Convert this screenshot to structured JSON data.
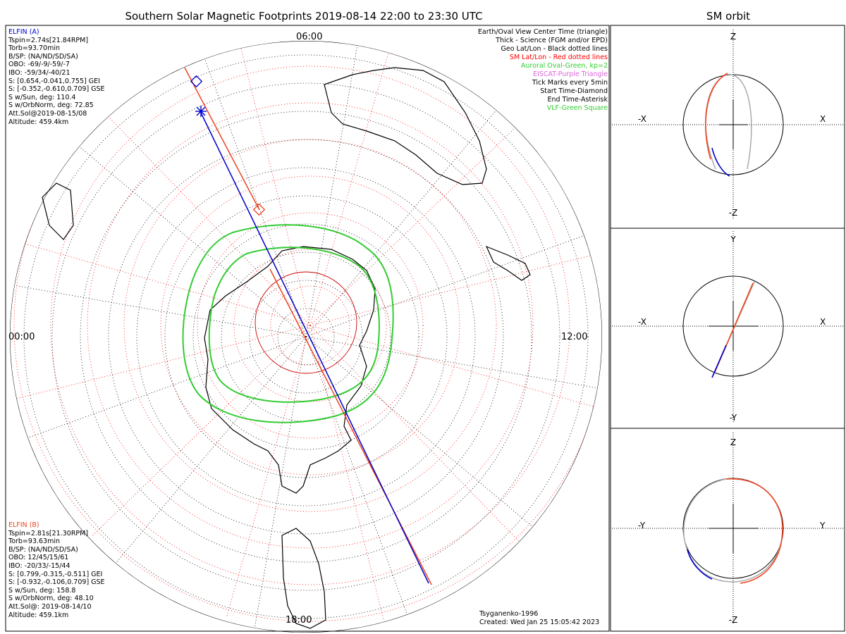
{
  "title": "Southern Solar Magnetic Footprints 2019-08-14 22:00 to 23:30 UTC",
  "orbit_title": "SM orbit",
  "map": {
    "lt_labels": {
      "top": "06:00",
      "left": "00:00",
      "right": "12:00",
      "bottom": "18:00"
    }
  },
  "elfin_a": {
    "title": "ELFIN (A)",
    "color": "#0000cc",
    "lines": [
      "Tspin=2.74s[21.84RPM]",
      "Torb=93.70min",
      "B/SP: (NA/ND/SD/SA)",
      "OBO: -69/-9/-59/-7",
      "IBO: -59/34/-40/21",
      "S: [0.654,-0.041,0.755] GEI",
      "S: [-0.352,-0.610,0.709] GSE",
      "S w/Sun, deg: 110.4",
      "S w/OrbNorm, deg: 72.85",
      "Att.Sol@2019-08-15/08",
      "Altitude: 459.4km"
    ]
  },
  "elfin_b": {
    "title": "ELFIN (B)",
    "color": "#ee4422",
    "lines": [
      "Tspin=2.81s[21.30RPM]",
      "Torb=93.63min",
      "B/SP: (NA/ND/SD/SA)",
      "OBO: 12/45/15/61",
      "IBO: -20/33/-15/44",
      "S: [0.799,-0.315,-0.511] GEI",
      "S: [-0.932,-0.106,0.709] GSE",
      "S w/Sun, deg: 158.8",
      "S w/OrbNorm, deg: 48.10",
      "Att.Sol@: 2019-08-14/10",
      "Altitude: 459.1km"
    ]
  },
  "legend": [
    {
      "text": "Earth/Oval View Center Time (triangle)",
      "color": "#000000"
    },
    {
      "text": "Thick - Science (FGM and/or EPD)",
      "color": "#000000"
    },
    {
      "text": "Geo Lat/Lon - Black dotted lines",
      "color": "#000000"
    },
    {
      "text": "SM Lat/Lon - Red dotted lines",
      "color": "#ff0000"
    },
    {
      "text": "Auroral Oval-Green, kp=2",
      "color": "#33cc33"
    },
    {
      "text": "EISCAT-Purple Triangle",
      "color": "#dd66dd"
    },
    {
      "text": "Tick Marks every 5min",
      "color": "#000000"
    },
    {
      "text": "Start Time-Diamond",
      "color": "#000000"
    },
    {
      "text": "End Time-Asterisk",
      "color": "#000000"
    },
    {
      "text": "VLF-Green Square",
      "color": "#33cc33"
    }
  ],
  "footer": {
    "model": "Tsyganenko-1996",
    "created": "Created: Wed Jan 25 15:05:42 2023"
  },
  "orbit_panels": [
    {
      "top": "Z",
      "bottom": "-Z",
      "left": "-X",
      "right": "X"
    },
    {
      "top": "Y",
      "bottom": "-Y",
      "left": "-X",
      "right": "X"
    },
    {
      "top": "Z",
      "bottom": "-Z",
      "left": "-Y",
      "right": "Y"
    }
  ],
  "colors": {
    "elfin_a": "#0000cc",
    "elfin_b": "#ee4422",
    "auroral_oval": "#33cc33",
    "sm_grid": "#ff0000",
    "geo_grid": "#000000",
    "orbit_gray": "#aaaaaa"
  }
}
